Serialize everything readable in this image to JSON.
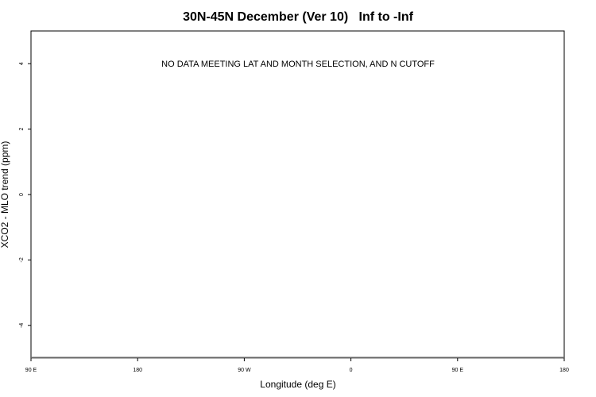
{
  "chart_data": {
    "type": "scatter",
    "title": "30N-45N December (Ver 10)   Inf to -Inf",
    "xlabel": "Longitude (deg E)",
    "ylabel": "XCO2 - MLO trend (ppm)",
    "xlim": [
      90,
      540
    ],
    "ylim": [
      -5,
      5
    ],
    "x_ticks": [
      {
        "value": 90,
        "label": "90 E"
      },
      {
        "value": 180,
        "label": "180"
      },
      {
        "value": 270,
        "label": "90 W"
      },
      {
        "value": 360,
        "label": "0"
      },
      {
        "value": 450,
        "label": "90 E"
      },
      {
        "value": 540,
        "label": "180"
      }
    ],
    "y_ticks": [
      {
        "value": 4,
        "label": "4"
      },
      {
        "value": 2,
        "label": "2"
      },
      {
        "value": 0,
        "label": "0"
      },
      {
        "value": -2,
        "label": "-2"
      },
      {
        "value": -4,
        "label": "-4"
      }
    ],
    "annotation": "NO DATA MEETING LAT AND MONTH SELECTION, AND N CUTOFF",
    "series": [],
    "grid": false,
    "colors": {
      "baseline": "#666666"
    }
  }
}
